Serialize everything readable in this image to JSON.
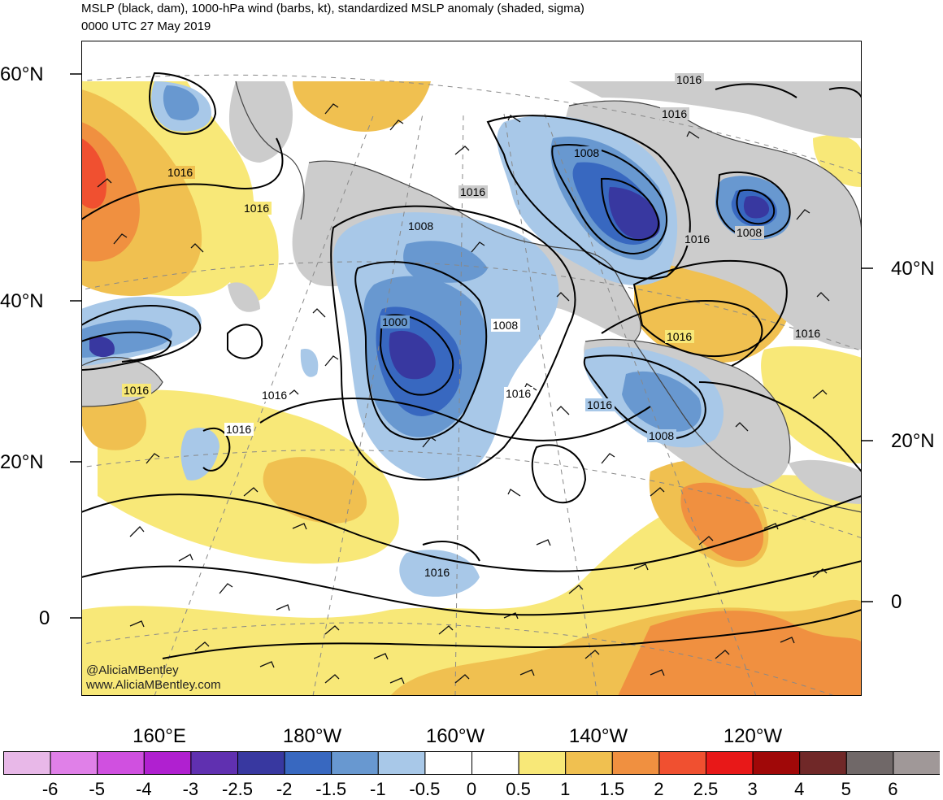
{
  "header": {
    "title": "MSLP (black, dam), 1000-hPa wind (barbs, kt), standardized MSLP anomaly (shaded, sigma)",
    "valid_time": "0000 UTC 27 May 2019"
  },
  "axes": {
    "lat_left": [
      "60°N",
      "40°N",
      "20°N",
      "0"
    ],
    "lat_right": [
      "40°N",
      "20°N",
      "0"
    ],
    "lon_bottom": [
      "160°E",
      "180°W",
      "160°W",
      "140°W",
      "120°W"
    ]
  },
  "isobar_labels": [
    "1016",
    "1016",
    "1008",
    "1016",
    "1000",
    "1008",
    "1016",
    "1016",
    "1016",
    "1016",
    "1008",
    "1016",
    "1016",
    "1016",
    "1008",
    "1016",
    "1016",
    "1008",
    "1016",
    "1016"
  ],
  "colorbar": {
    "labels": [
      "-6",
      "-5",
      "-4",
      "-3",
      "-2.5",
      "-2",
      "-1.5",
      "-1",
      "-0.5",
      "0",
      "0.5",
      "1",
      "1.5",
      "2",
      "2.5",
      "3",
      "4",
      "5",
      "6"
    ],
    "colors": [
      "#e8b8e8",
      "#e080e8",
      "#d050e0",
      "#b020d0",
      "#6030b0",
      "#3838a0",
      "#3868c0",
      "#6898d0",
      "#a8c8e8",
      "#ffffff",
      "#ffffff",
      "#f8e878",
      "#f0c050",
      "#f09040",
      "#f05030",
      "#e81818",
      "#a00808",
      "#702828",
      "#706868",
      "#a09898"
    ]
  },
  "credits": {
    "handle": "@AliciaMBentley",
    "site": "www.AliciaMBentley.com"
  }
}
